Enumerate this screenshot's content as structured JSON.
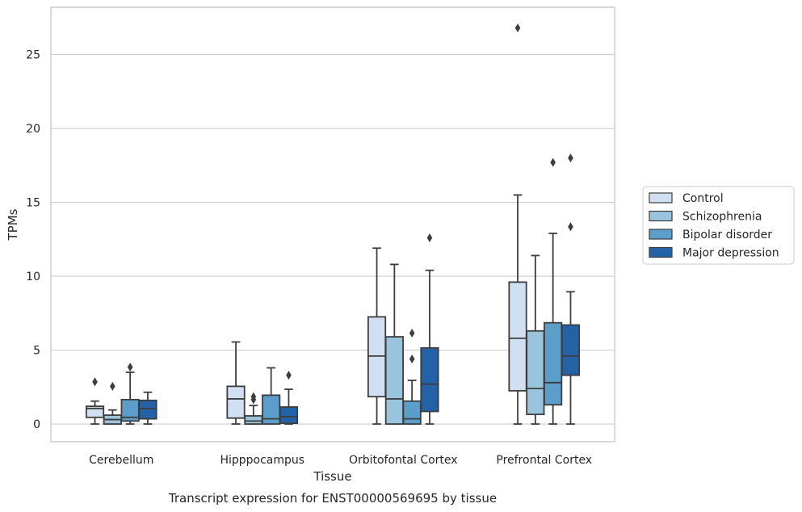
{
  "chart_data": {
    "type": "box",
    "title": "",
    "caption": "Transcript expression for ENST00000569695 by tissue",
    "xlabel": "Tissue",
    "ylabel": "TPMs",
    "ylim": [
      -1.2,
      28.2
    ],
    "yticks": [
      0,
      5,
      10,
      15,
      20,
      25
    ],
    "grid": "horizontal",
    "legend_position": "right",
    "categories": [
      "Cerebellum",
      "Hipppocampus",
      "Orbitofontal Cortex",
      "Prefrontal Cortex"
    ],
    "series": [
      {
        "name": "Control",
        "color": "#d0e0f0",
        "boxes": [
          {
            "whislo": 0.0,
            "q1": 0.45,
            "med": 1.05,
            "q3": 1.2,
            "whishi": 1.55,
            "fliers": [
              2.85
            ]
          },
          {
            "whislo": 0.0,
            "q1": 0.4,
            "med": 1.7,
            "q3": 2.55,
            "whishi": 5.55,
            "fliers": []
          },
          {
            "whislo": 0.0,
            "q1": 1.85,
            "med": 4.6,
            "q3": 7.25,
            "whishi": 11.9,
            "fliers": []
          },
          {
            "whislo": 0.0,
            "q1": 2.25,
            "med": 5.8,
            "q3": 9.6,
            "whishi": 15.5,
            "fliers": [
              26.8
            ]
          }
        ]
      },
      {
        "name": "Schizophrenia",
        "color": "#9ac4de",
        "boxes": [
          {
            "whislo": 0.0,
            "q1": 0.0,
            "med": 0.3,
            "q3": 0.6,
            "whishi": 0.95,
            "fliers": [
              2.55
            ]
          },
          {
            "whislo": 0.0,
            "q1": 0.0,
            "med": 0.2,
            "q3": 0.55,
            "whishi": 1.25,
            "fliers": [
              1.65,
              1.85
            ]
          },
          {
            "whislo": 0.0,
            "q1": 0.0,
            "med": 1.7,
            "q3": 5.9,
            "whishi": 10.8,
            "fliers": []
          },
          {
            "whislo": 0.0,
            "q1": 0.65,
            "med": 2.4,
            "q3": 6.3,
            "whishi": 11.4,
            "fliers": []
          }
        ]
      },
      {
        "name": "Bipolar disorder",
        "color": "#5a9ec9",
        "boxes": [
          {
            "whislo": 0.0,
            "q1": 0.2,
            "med": 0.45,
            "q3": 1.65,
            "whishi": 3.5,
            "fliers": [
              3.85
            ]
          },
          {
            "whislo": 0.0,
            "q1": 0.0,
            "med": 0.35,
            "q3": 1.95,
            "whishi": 3.8,
            "fliers": []
          },
          {
            "whislo": 0.0,
            "q1": 0.0,
            "med": 0.35,
            "q3": 1.55,
            "whishi": 2.95,
            "fliers": [
              4.4,
              6.15
            ]
          },
          {
            "whislo": 0.0,
            "q1": 1.3,
            "med": 2.8,
            "q3": 6.85,
            "whishi": 12.9,
            "fliers": [
              17.7
            ]
          }
        ]
      },
      {
        "name": "Major depression",
        "color": "#2462a8",
        "boxes": [
          {
            "whislo": 0.0,
            "q1": 0.35,
            "med": 1.05,
            "q3": 1.6,
            "whishi": 2.15,
            "fliers": []
          },
          {
            "whislo": 0.0,
            "q1": 0.05,
            "med": 0.5,
            "q3": 1.15,
            "whishi": 2.35,
            "fliers": [
              3.3
            ]
          },
          {
            "whislo": 0.0,
            "q1": 0.85,
            "med": 2.7,
            "q3": 5.15,
            "whishi": 10.4,
            "fliers": [
              12.6
            ]
          },
          {
            "whislo": 0.0,
            "q1": 3.3,
            "med": 4.6,
            "q3": 6.7,
            "whishi": 8.95,
            "fliers": [
              13.35,
              18.0
            ]
          }
        ]
      }
    ]
  }
}
